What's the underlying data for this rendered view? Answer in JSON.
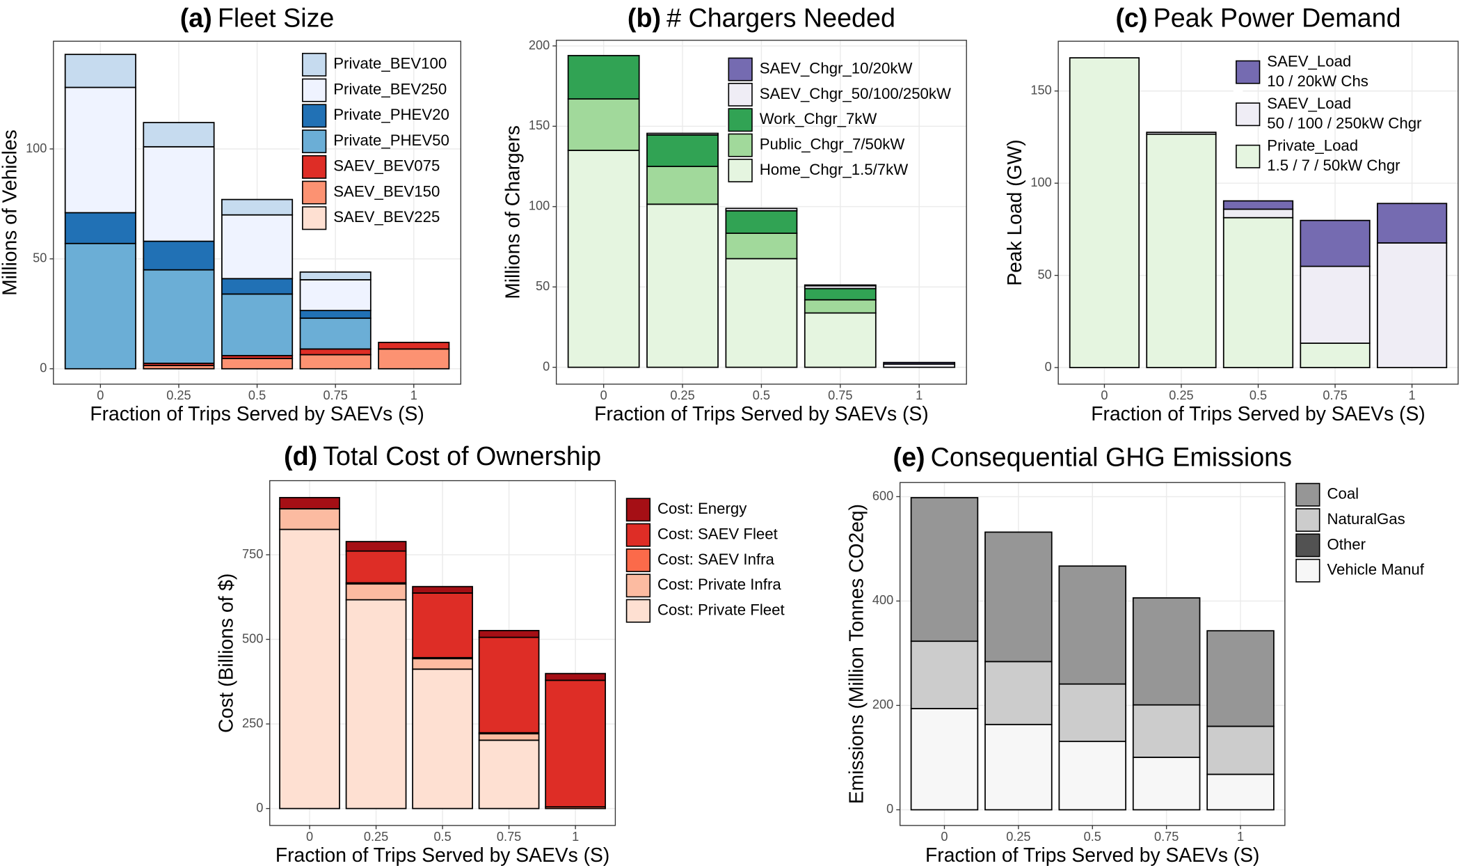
{
  "chart_data": [
    {
      "type": "bar",
      "stacked": true,
      "label": "(a)",
      "title": "Fleet Size",
      "x_label": "Fraction of Trips Served by SAEVs (S)",
      "y_label": "Millions of Vehicles",
      "categories": [
        "0",
        "0.25",
        "0.5",
        "0.75",
        "1"
      ],
      "ylim": [
        -7,
        149
      ],
      "yticks": [
        0,
        50,
        100
      ],
      "grid": true,
      "legend": "top-right",
      "series": [
        {
          "name": "Private_BEV100",
          "color": "#c6dbef",
          "values": [
            15,
            11,
            7,
            3.5,
            0
          ]
        },
        {
          "name": "Private_BEV250",
          "color": "#eff3ff",
          "values": [
            57,
            43,
            29,
            14,
            0
          ]
        },
        {
          "name": "Private_PHEV20",
          "color": "#2171b5",
          "values": [
            14,
            13,
            7,
            3.5,
            0
          ]
        },
        {
          "name": "Private_PHEV50",
          "color": "#6baed6",
          "values": [
            57,
            42.5,
            28,
            14,
            0
          ]
        },
        {
          "name": "SAEV_BEV075",
          "color": "#de2d26",
          "values": [
            0,
            1,
            1.3,
            2.6,
            3
          ]
        },
        {
          "name": "SAEV_BEV150",
          "color": "#fc9272",
          "values": [
            0,
            1.5,
            4.7,
            6.4,
            9
          ]
        },
        {
          "name": "SAEV_BEV225",
          "color": "#fee0d2",
          "values": [
            0,
            0,
            0,
            0,
            0
          ]
        }
      ]
    },
    {
      "type": "bar",
      "stacked": true,
      "label": "(b)",
      "title": "# Chargers Needed",
      "x_label": "Fraction of Trips Served by SAEVs (S)",
      "y_label": "Millions of Chargers",
      "categories": [
        "0",
        "0.25",
        "0.5",
        "0.75",
        "1"
      ],
      "ylim": [
        -10.5,
        203.5
      ],
      "yticks": [
        0,
        50,
        100,
        150,
        200
      ],
      "grid": true,
      "legend": "top-right",
      "series": [
        {
          "name": "SAEV_Chgr_10/20kW",
          "color": "#756bb1",
          "values": [
            0,
            0,
            0,
            0.5,
            1
          ]
        },
        {
          "name": "SAEV_Chgr_50/100/250kW",
          "color": "#efedf5",
          "values": [
            0,
            1,
            1.5,
            1.7,
            2
          ]
        },
        {
          "name": "Work_Chgr_7kW",
          "color": "#31a354",
          "values": [
            27,
            19.6,
            14,
            7,
            0
          ]
        },
        {
          "name": "Public_Chgr_7/50kW",
          "color": "#a1d99b",
          "values": [
            32,
            23.5,
            15.8,
            8.2,
            0
          ]
        },
        {
          "name": "Home_Chgr_1.5/7kW",
          "color": "#e5f5e0",
          "values": [
            135,
            101.5,
            67.6,
            33.8,
            0
          ]
        }
      ]
    },
    {
      "type": "bar",
      "stacked": true,
      "label": "(c)",
      "title": "Peak Power Demand",
      "x_label": "Fraction of Trips Served by SAEVs (S)",
      "y_label": "Peak Load (GW)",
      "categories": [
        "0",
        "0.25",
        "0.5",
        "0.75",
        "1"
      ],
      "ylim": [
        -9,
        177
      ],
      "yticks": [
        0,
        50,
        100,
        150
      ],
      "grid": true,
      "legend": "top-right",
      "series": [
        {
          "name": "SAEV_Load\n10 / 20kW Chs",
          "color": "#756bb1",
          "values": [
            0,
            0,
            4.5,
            24.9,
            21.4
          ]
        },
        {
          "name": "SAEV_Load\n50 / 100 / 250kW Chgr",
          "color": "#efedf5",
          "values": [
            0,
            1,
            4.6,
            41.7,
            67.6
          ]
        },
        {
          "name": "Private_Load\n1.5 / 7 / 50kW Chgr",
          "color": "#e5f5e0",
          "values": [
            168,
            126.6,
            81.3,
            13.2,
            0
          ]
        }
      ]
    },
    {
      "type": "bar",
      "stacked": true,
      "label": "(d)",
      "title": "Total Cost of Ownership",
      "x_label": "Fraction of Trips Served by SAEVs (S)",
      "y_label": "Cost (Billions of $)",
      "categories": [
        "0",
        "0.25",
        "0.5",
        "0.75",
        "1"
      ],
      "ylim": [
        -50,
        969
      ],
      "yticks": [
        0,
        250,
        500,
        750
      ],
      "grid": true,
      "legend": "right",
      "series": [
        {
          "name": "Cost: Energy",
          "color": "#a50f15",
          "values": [
            33,
            28,
            19,
            20,
            20
          ]
        },
        {
          "name": "Cost: SAEV Fleet",
          "color": "#de2d26",
          "values": [
            0,
            94,
            191,
            282,
            374
          ]
        },
        {
          "name": "Cost: SAEV Infra",
          "color": "#fb6a4a",
          "values": [
            0,
            3,
            3,
            3,
            5
          ]
        },
        {
          "name": "Cost: Private Infra",
          "color": "#fcbba1",
          "values": [
            61,
            47,
            31,
            19,
            0
          ]
        },
        {
          "name": "Cost: Private Fleet",
          "color": "#fee0d2",
          "values": [
            825,
            617,
            412,
            202,
            0
          ]
        }
      ]
    },
    {
      "type": "bar",
      "stacked": true,
      "label": "(e)",
      "title": "Consequential GHG Emissions",
      "x_label": "Fraction of Trips Served by SAEVs (S)",
      "y_label": "Emissions (Million Tonnes CO2eq)",
      "categories": [
        "0",
        "0.25",
        "0.5",
        "0.75",
        "1"
      ],
      "ylim": [
        -30,
        627
      ],
      "yticks": [
        0,
        200,
        400,
        600
      ],
      "grid": true,
      "legend": "right",
      "series": [
        {
          "name": "Coal",
          "color": "#969696",
          "values": [
            275,
            248,
            226,
            205,
            183
          ]
        },
        {
          "name": "NaturalGas",
          "color": "#cccccc",
          "values": [
            129,
            120.5,
            110,
            100.4,
            92
          ]
        },
        {
          "name": "Other",
          "color": "#525252",
          "values": [
            0,
            0,
            0,
            0,
            0
          ]
        },
        {
          "name": "Vehicle Manuf",
          "color": "#f7f7f7",
          "values": [
            194,
            163.5,
            131,
            100.6,
            68
          ]
        }
      ]
    }
  ]
}
